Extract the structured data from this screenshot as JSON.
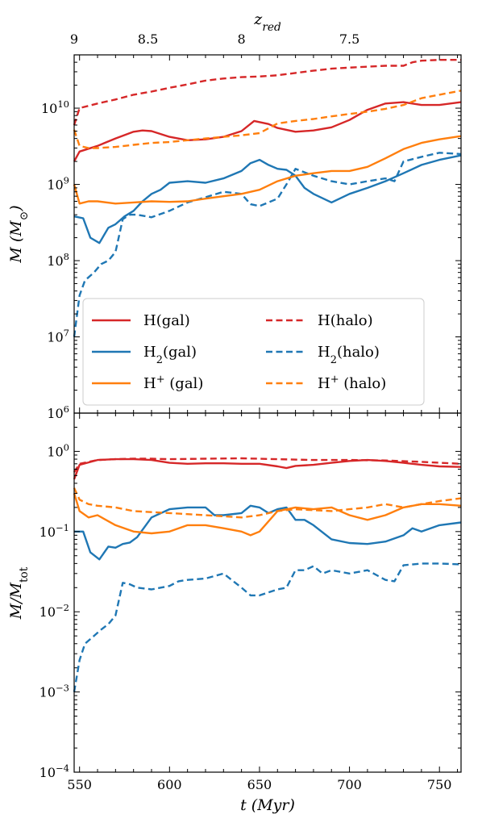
{
  "chart_data": [
    {
      "type": "line",
      "panel": "top",
      "xlabel": "t (Myr)",
      "ylabel": "M (M⊙)",
      "yscale": "log",
      "xlim": [
        547,
        762
      ],
      "ylim": [
        1000000,
        50000000000
      ],
      "yticks": [
        {
          "value": 1000000,
          "base": "10",
          "exp": "6"
        },
        {
          "value": 10000000,
          "base": "10",
          "exp": "7"
        },
        {
          "value": 100000000,
          "base": "10",
          "exp": "8"
        },
        {
          "value": 1000000000,
          "base": "10",
          "exp": "9"
        },
        {
          "value": 10000000000,
          "base": "10",
          "exp": "10"
        }
      ],
      "top_axis": {
        "label": "z_red",
        "label_main": "z",
        "label_sub": "red",
        "ticks": [
          {
            "label": "9",
            "t": 547
          },
          {
            "label": "8.5",
            "t": 588
          },
          {
            "label": "8",
            "t": 640
          },
          {
            "label": "7.5",
            "t": 700
          }
        ]
      },
      "legend": {
        "placement": "lower-center",
        "entries": [
          {
            "series": "H(gal)",
            "main": "H",
            "sup": "",
            "sub": "",
            "tail": "(gal)"
          },
          {
            "series": "H(halo)",
            "main": "H",
            "sup": "",
            "sub": "",
            "tail": "(halo)"
          },
          {
            "series": "H2(gal)",
            "main": "H",
            "sup": "",
            "sub": "2",
            "tail": "(gal)"
          },
          {
            "series": "H2(halo)",
            "main": "H",
            "sup": "",
            "sub": "2",
            "tail": "(halo)"
          },
          {
            "series": "H+(gal)",
            "main": "H",
            "sup": "+",
            "sub": "",
            "tail": " (gal)"
          },
          {
            "series": "H+(halo)",
            "main": "H",
            "sup": "+",
            "sub": "",
            "tail": " (halo)"
          }
        ]
      },
      "series": [
        {
          "name": "H(gal)",
          "color": "#d62728",
          "dash": "solid",
          "x": [
            547,
            550,
            560,
            570,
            580,
            585,
            590,
            600,
            610,
            620,
            630,
            640,
            647,
            655,
            660,
            665,
            670,
            680,
            690,
            700,
            710,
            720,
            730,
            740,
            750,
            762
          ],
          "y": [
            2000000000.0,
            2700000000.0,
            3200000000.0,
            4000000000.0,
            4900000000.0,
            5100000000.0,
            5000000000.0,
            4200000000.0,
            3800000000.0,
            3900000000.0,
            4200000000.0,
            5000000000.0,
            6800000000.0,
            6200000000.0,
            5500000000.0,
            5200000000.0,
            4900000000.0,
            5100000000.0,
            5600000000.0,
            7000000000.0,
            9500000000.0,
            11500000000.0,
            12000000000.0,
            11000000000.0,
            11000000000.0,
            12000000000.0
          ]
        },
        {
          "name": "H(halo)",
          "color": "#d62728",
          "dash": "dashed",
          "x": [
            547,
            550,
            560,
            570,
            580,
            590,
            600,
            610,
            620,
            630,
            640,
            650,
            660,
            670,
            680,
            690,
            700,
            710,
            720,
            730,
            735,
            740,
            750,
            762
          ],
          "y": [
            6000000000.0,
            10000000000.0,
            11500000000.0,
            13000000000.0,
            15000000000.0,
            16500000000.0,
            18500000000.0,
            20500000000.0,
            23000000000.0,
            24500000000.0,
            25500000000.0,
            26000000000.0,
            27000000000.0,
            29000000000.0,
            31000000000.0,
            33000000000.0,
            34000000000.0,
            35000000000.0,
            36000000000.0,
            36000000000.0,
            40000000000.0,
            42000000000.0,
            43000000000.0,
            43000000000.0
          ]
        },
        {
          "name": "H2(gal)",
          "color": "#1f77b4",
          "dash": "solid",
          "x": [
            547,
            552,
            556,
            561,
            566,
            570,
            575,
            580,
            585,
            590,
            595,
            600,
            610,
            620,
            630,
            640,
            645,
            650,
            655,
            660,
            665,
            670,
            675,
            680,
            690,
            700,
            710,
            720,
            730,
            740,
            750,
            762
          ],
          "y": [
            380000000.0,
            360000000.0,
            200000000.0,
            170000000.0,
            270000000.0,
            300000000.0,
            380000000.0,
            450000000.0,
            600000000.0,
            750000000.0,
            850000000.0,
            1050000000.0,
            1100000000.0,
            1050000000.0,
            1200000000.0,
            1500000000.0,
            1900000000.0,
            2100000000.0,
            1800000000.0,
            1600000000.0,
            1550000000.0,
            1300000000.0,
            900000000.0,
            750000000.0,
            580000000.0,
            750000000.0,
            900000000.0,
            1100000000.0,
            1400000000.0,
            1800000000.0,
            2100000000.0,
            2400000000.0
          ]
        },
        {
          "name": "H2(halo)",
          "color": "#1f77b4",
          "dash": "dashed",
          "x": [
            547,
            550,
            553,
            558,
            562,
            566,
            570,
            574,
            578,
            582,
            590,
            600,
            610,
            620,
            630,
            640,
            645,
            650,
            660,
            665,
            670,
            680,
            690,
            700,
            710,
            720,
            725,
            730,
            740,
            750,
            762
          ],
          "y": [
            10000000.0,
            35000000.0,
            55000000.0,
            70000000.0,
            90000000.0,
            100000000.0,
            130000000.0,
            350000000.0,
            400000000.0,
            400000000.0,
            370000000.0,
            450000000.0,
            580000000.0,
            680000000.0,
            800000000.0,
            750000000.0,
            550000000.0,
            520000000.0,
            650000000.0,
            1000000000.0,
            1600000000.0,
            1300000000.0,
            1100000000.0,
            1000000000.0,
            1100000000.0,
            1200000000.0,
            1100000000.0,
            2000000000.0,
            2300000000.0,
            2600000000.0,
            2500000000.0
          ]
        },
        {
          "name": "H+(gal)",
          "color": "#ff7f0e",
          "dash": "solid",
          "x": [
            547,
            550,
            555,
            560,
            570,
            580,
            590,
            600,
            610,
            620,
            630,
            640,
            650,
            660,
            670,
            680,
            690,
            700,
            710,
            720,
            730,
            740,
            750,
            762
          ],
          "y": [
            1000000000.0,
            560000000.0,
            600000000.0,
            600000000.0,
            560000000.0,
            580000000.0,
            600000000.0,
            590000000.0,
            600000000.0,
            650000000.0,
            700000000.0,
            750000000.0,
            850000000.0,
            1100000000.0,
            1300000000.0,
            1400000000.0,
            1500000000.0,
            1500000000.0,
            1700000000.0,
            2200000000.0,
            2900000000.0,
            3500000000.0,
            3900000000.0,
            4300000000.0
          ]
        },
        {
          "name": "H+(halo)",
          "color": "#ff7f0e",
          "dash": "dashed",
          "x": [
            547,
            550,
            555,
            560,
            570,
            580,
            590,
            600,
            610,
            620,
            630,
            640,
            650,
            660,
            670,
            680,
            690,
            700,
            710,
            720,
            730,
            740,
            750,
            762
          ],
          "y": [
            5200000000.0,
            3200000000.0,
            3000000000.0,
            3000000000.0,
            3100000000.0,
            3300000000.0,
            3500000000.0,
            3600000000.0,
            3800000000.0,
            4000000000.0,
            4200000000.0,
            4400000000.0,
            4700000000.0,
            6300000000.0,
            6800000000.0,
            7200000000.0,
            7800000000.0,
            8400000000.0,
            9000000000.0,
            9800000000.0,
            11000000000.0,
            13500000000.0,
            15000000000.0,
            17000000000.0
          ]
        }
      ]
    },
    {
      "type": "line",
      "panel": "bottom",
      "xlabel": "t (Myr)",
      "ylabel": "M/M_tot",
      "ylabel_main": "M/M",
      "ylabel_sub": "tot",
      "yscale": "log",
      "xlim": [
        547,
        762
      ],
      "ylim": [
        0.0001,
        3
      ],
      "xticks": [
        550,
        600,
        650,
        700,
        750
      ],
      "yticks": [
        {
          "value": 0.0001,
          "base": "10",
          "exp": "−4"
        },
        {
          "value": 0.001,
          "base": "10",
          "exp": "−3"
        },
        {
          "value": 0.01,
          "base": "10",
          "exp": "−2"
        },
        {
          "value": 0.1,
          "base": "10",
          "exp": "−1"
        },
        {
          "value": 1,
          "base": "10",
          "exp": "0"
        }
      ],
      "series": [
        {
          "name": "H(gal)",
          "color": "#d62728",
          "dash": "solid",
          "x": [
            547,
            550,
            560,
            570,
            580,
            590,
            600,
            610,
            620,
            630,
            640,
            650,
            660,
            665,
            670,
            680,
            690,
            700,
            710,
            720,
            730,
            740,
            750,
            762
          ],
          "y": [
            0.45,
            0.68,
            0.78,
            0.8,
            0.8,
            0.78,
            0.72,
            0.7,
            0.71,
            0.71,
            0.7,
            0.7,
            0.65,
            0.62,
            0.66,
            0.68,
            0.72,
            0.76,
            0.78,
            0.76,
            0.72,
            0.68,
            0.65,
            0.64
          ]
        },
        {
          "name": "H(halo)",
          "color": "#d62728",
          "dash": "dashed",
          "x": [
            547,
            550,
            560,
            570,
            580,
            590,
            600,
            620,
            640,
            660,
            680,
            700,
            720,
            740,
            762
          ],
          "y": [
            0.55,
            0.7,
            0.78,
            0.8,
            0.81,
            0.81,
            0.8,
            0.81,
            0.82,
            0.8,
            0.78,
            0.78,
            0.77,
            0.74,
            0.7
          ]
        },
        {
          "name": "H2(gal)",
          "color": "#1f77b4",
          "dash": "solid",
          "x": [
            547,
            552,
            556,
            561,
            566,
            570,
            574,
            578,
            582,
            590,
            600,
            610,
            620,
            625,
            630,
            640,
            645,
            650,
            655,
            660,
            665,
            670,
            675,
            680,
            690,
            700,
            710,
            720,
            730,
            735,
            740,
            750,
            762
          ],
          "y": [
            0.1,
            0.1,
            0.055,
            0.045,
            0.065,
            0.063,
            0.07,
            0.073,
            0.085,
            0.15,
            0.19,
            0.2,
            0.2,
            0.16,
            0.16,
            0.17,
            0.21,
            0.2,
            0.17,
            0.19,
            0.2,
            0.14,
            0.14,
            0.12,
            0.08,
            0.072,
            0.07,
            0.075,
            0.09,
            0.11,
            0.1,
            0.12,
            0.13
          ]
        },
        {
          "name": "H2(halo)",
          "color": "#1f77b4",
          "dash": "dashed",
          "x": [
            547,
            550,
            553,
            558,
            562,
            566,
            570,
            574,
            578,
            582,
            590,
            600,
            605,
            610,
            620,
            630,
            640,
            645,
            650,
            660,
            665,
            670,
            675,
            680,
            685,
            690,
            700,
            710,
            720,
            725,
            730,
            740,
            750,
            762
          ],
          "y": [
            0.001,
            0.0025,
            0.004,
            0.005,
            0.006,
            0.007,
            0.009,
            0.023,
            0.022,
            0.02,
            0.019,
            0.021,
            0.024,
            0.025,
            0.026,
            0.03,
            0.02,
            0.016,
            0.016,
            0.019,
            0.02,
            0.033,
            0.033,
            0.037,
            0.03,
            0.033,
            0.03,
            0.033,
            0.025,
            0.024,
            0.038,
            0.04,
            0.04,
            0.039
          ]
        },
        {
          "name": "H+(gal)",
          "color": "#ff7f0e",
          "dash": "solid",
          "x": [
            547,
            550,
            555,
            560,
            570,
            580,
            590,
            600,
            610,
            620,
            630,
            640,
            645,
            650,
            660,
            670,
            680,
            690,
            700,
            710,
            720,
            730,
            740,
            750,
            762
          ],
          "y": [
            0.3,
            0.18,
            0.15,
            0.16,
            0.12,
            0.1,
            0.095,
            0.1,
            0.12,
            0.12,
            0.11,
            0.1,
            0.09,
            0.1,
            0.18,
            0.2,
            0.19,
            0.2,
            0.16,
            0.14,
            0.16,
            0.2,
            0.22,
            0.22,
            0.21
          ]
        },
        {
          "name": "H+(halo)",
          "color": "#ff7f0e",
          "dash": "dashed",
          "x": [
            547,
            550,
            555,
            560,
            570,
            580,
            590,
            600,
            610,
            620,
            630,
            640,
            650,
            660,
            670,
            680,
            690,
            700,
            710,
            720,
            730,
            740,
            750,
            762
          ],
          "y": [
            0.35,
            0.25,
            0.22,
            0.21,
            0.2,
            0.18,
            0.175,
            0.17,
            0.165,
            0.16,
            0.155,
            0.15,
            0.16,
            0.18,
            0.19,
            0.185,
            0.18,
            0.19,
            0.2,
            0.22,
            0.2,
            0.22,
            0.24,
            0.26
          ]
        }
      ]
    }
  ]
}
